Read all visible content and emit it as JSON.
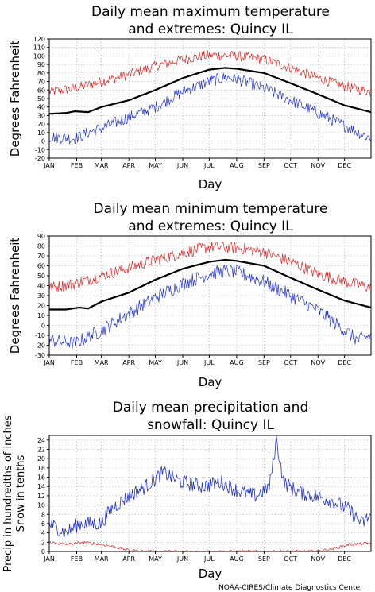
{
  "footer": "NOAA-CIRES/Climate Diagnostics Center",
  "months": [
    "JAN",
    "FEB",
    "MAR",
    "APR",
    "MAY",
    "JUN",
    "JUL",
    "AUG",
    "SEP",
    "OCT",
    "NOV",
    "DEC"
  ],
  "chart_data": [
    {
      "type": "line",
      "title_lines": [
        "Daily mean maximum temperature",
        "and extremes: Quincy IL"
      ],
      "xlabel": "Day",
      "ylabel_lines": [
        "Degrees Fahrenheit"
      ],
      "ylim": [
        -20,
        120
      ],
      "yticks": [
        -20,
        -10,
        0,
        10,
        20,
        30,
        40,
        50,
        60,
        70,
        80,
        90,
        100,
        110,
        120
      ],
      "grid": true,
      "series": [
        {
          "color": "#e02020",
          "width": 0.7,
          "noise": 6,
          "points": [
            [
              1,
              58
            ],
            [
              30,
              62
            ],
            [
              60,
              70
            ],
            [
              91,
              78
            ],
            [
              121,
              88
            ],
            [
              152,
              96
            ],
            [
              182,
              101
            ],
            [
              213,
              100
            ],
            [
              244,
              96
            ],
            [
              274,
              86
            ],
            [
              305,
              74
            ],
            [
              335,
              64
            ],
            [
              365,
              58
            ]
          ]
        },
        {
          "color": "#000000",
          "width": 2.2,
          "noise": 0,
          "points": [
            [
              1,
              32
            ],
            [
              20,
              33
            ],
            [
              30,
              35
            ],
            [
              45,
              34
            ],
            [
              60,
              40
            ],
            [
              91,
              48
            ],
            [
              121,
              60
            ],
            [
              152,
              74
            ],
            [
              182,
              84
            ],
            [
              200,
              86
            ],
            [
              213,
              85
            ],
            [
              244,
              80
            ],
            [
              274,
              68
            ],
            [
              305,
              55
            ],
            [
              335,
              42
            ],
            [
              365,
              34
            ]
          ]
        },
        {
          "color": "#2030d0",
          "width": 0.7,
          "noise": 7,
          "points": [
            [
              1,
              5
            ],
            [
              30,
              3
            ],
            [
              50,
              12
            ],
            [
              60,
              15
            ],
            [
              91,
              28
            ],
            [
              121,
              40
            ],
            [
              152,
              58
            ],
            [
              182,
              70
            ],
            [
              200,
              75
            ],
            [
              213,
              73
            ],
            [
              244,
              62
            ],
            [
              274,
              48
            ],
            [
              305,
              33
            ],
            [
              335,
              18
            ],
            [
              365,
              3
            ]
          ]
        }
      ]
    },
    {
      "type": "line",
      "title_lines": [
        "Daily mean minimum temperature",
        "and extremes: Quincy IL"
      ],
      "xlabel": "Day",
      "ylabel_lines": [
        "Degrees Fahrenheit"
      ],
      "ylim": [
        -30,
        90
      ],
      "yticks": [
        -30,
        -20,
        -10,
        0,
        10,
        20,
        30,
        40,
        50,
        60,
        70,
        80,
        90
      ],
      "grid": true,
      "series": [
        {
          "color": "#e02020",
          "width": 0.7,
          "noise": 6,
          "points": [
            [
              1,
              38
            ],
            [
              30,
              42
            ],
            [
              60,
              50
            ],
            [
              91,
              58
            ],
            [
              121,
              66
            ],
            [
              152,
              73
            ],
            [
              182,
              79
            ],
            [
              213,
              78
            ],
            [
              244,
              74
            ],
            [
              274,
              64
            ],
            [
              305,
              52
            ],
            [
              335,
              44
            ],
            [
              365,
              38
            ]
          ]
        },
        {
          "color": "#000000",
          "width": 2.2,
          "noise": 0,
          "points": [
            [
              1,
              16
            ],
            [
              20,
              16
            ],
            [
              35,
              18
            ],
            [
              45,
              17
            ],
            [
              60,
              24
            ],
            [
              91,
              33
            ],
            [
              121,
              46
            ],
            [
              152,
              57
            ],
            [
              182,
              64
            ],
            [
              200,
              66
            ],
            [
              213,
              65
            ],
            [
              244,
              60
            ],
            [
              274,
              48
            ],
            [
              305,
              36
            ],
            [
              335,
              25
            ],
            [
              365,
              18
            ]
          ]
        },
        {
          "color": "#2030d0",
          "width": 0.7,
          "noise": 7,
          "points": [
            [
              1,
              -15
            ],
            [
              30,
              -18
            ],
            [
              60,
              -5
            ],
            [
              91,
              12
            ],
            [
              121,
              28
            ],
            [
              152,
              42
            ],
            [
              182,
              52
            ],
            [
              200,
              55
            ],
            [
              213,
              54
            ],
            [
              244,
              44
            ],
            [
              274,
              30
            ],
            [
              305,
              15
            ],
            [
              335,
              -5
            ],
            [
              350,
              -15
            ],
            [
              365,
              -10
            ]
          ]
        }
      ]
    },
    {
      "type": "line",
      "title_lines": [
        "Daily mean precipitation and",
        "snowfall: Quincy IL"
      ],
      "xlabel": "Day",
      "ylabel_lines": [
        "Precip in hundredths of inches",
        "Snow in tenths"
      ],
      "ylim": [
        0,
        25
      ],
      "yticks": [
        0,
        2,
        4,
        6,
        8,
        10,
        12,
        14,
        16,
        18,
        20,
        22,
        24
      ],
      "grid": true,
      "series": [
        {
          "color": "#2030d0",
          "width": 0.8,
          "noise": 1.6,
          "points": [
            [
              1,
              6
            ],
            [
              20,
              4
            ],
            [
              35,
              6
            ],
            [
              60,
              6
            ],
            [
              70,
              9
            ],
            [
              91,
              12
            ],
            [
              110,
              14
            ],
            [
              130,
              17
            ],
            [
              150,
              15
            ],
            [
              175,
              14
            ],
            [
              195,
              15
            ],
            [
              215,
              13
            ],
            [
              235,
              12
            ],
            [
              250,
              14
            ],
            [
              258,
              24
            ],
            [
              266,
              15
            ],
            [
              280,
              13
            ],
            [
              300,
              12
            ],
            [
              320,
              11
            ],
            [
              340,
              9
            ],
            [
              355,
              6
            ],
            [
              365,
              8
            ]
          ]
        },
        {
          "color": "#e02020",
          "width": 0.7,
          "noise": 0.3,
          "points": [
            [
              1,
              2
            ],
            [
              20,
              1.5
            ],
            [
              40,
              2
            ],
            [
              60,
              1.5
            ],
            [
              75,
              1
            ],
            [
              90,
              0.3
            ],
            [
              110,
              0
            ],
            [
              300,
              0
            ],
            [
              320,
              0.5
            ],
            [
              340,
              1.5
            ],
            [
              365,
              1.8
            ]
          ]
        }
      ]
    }
  ]
}
